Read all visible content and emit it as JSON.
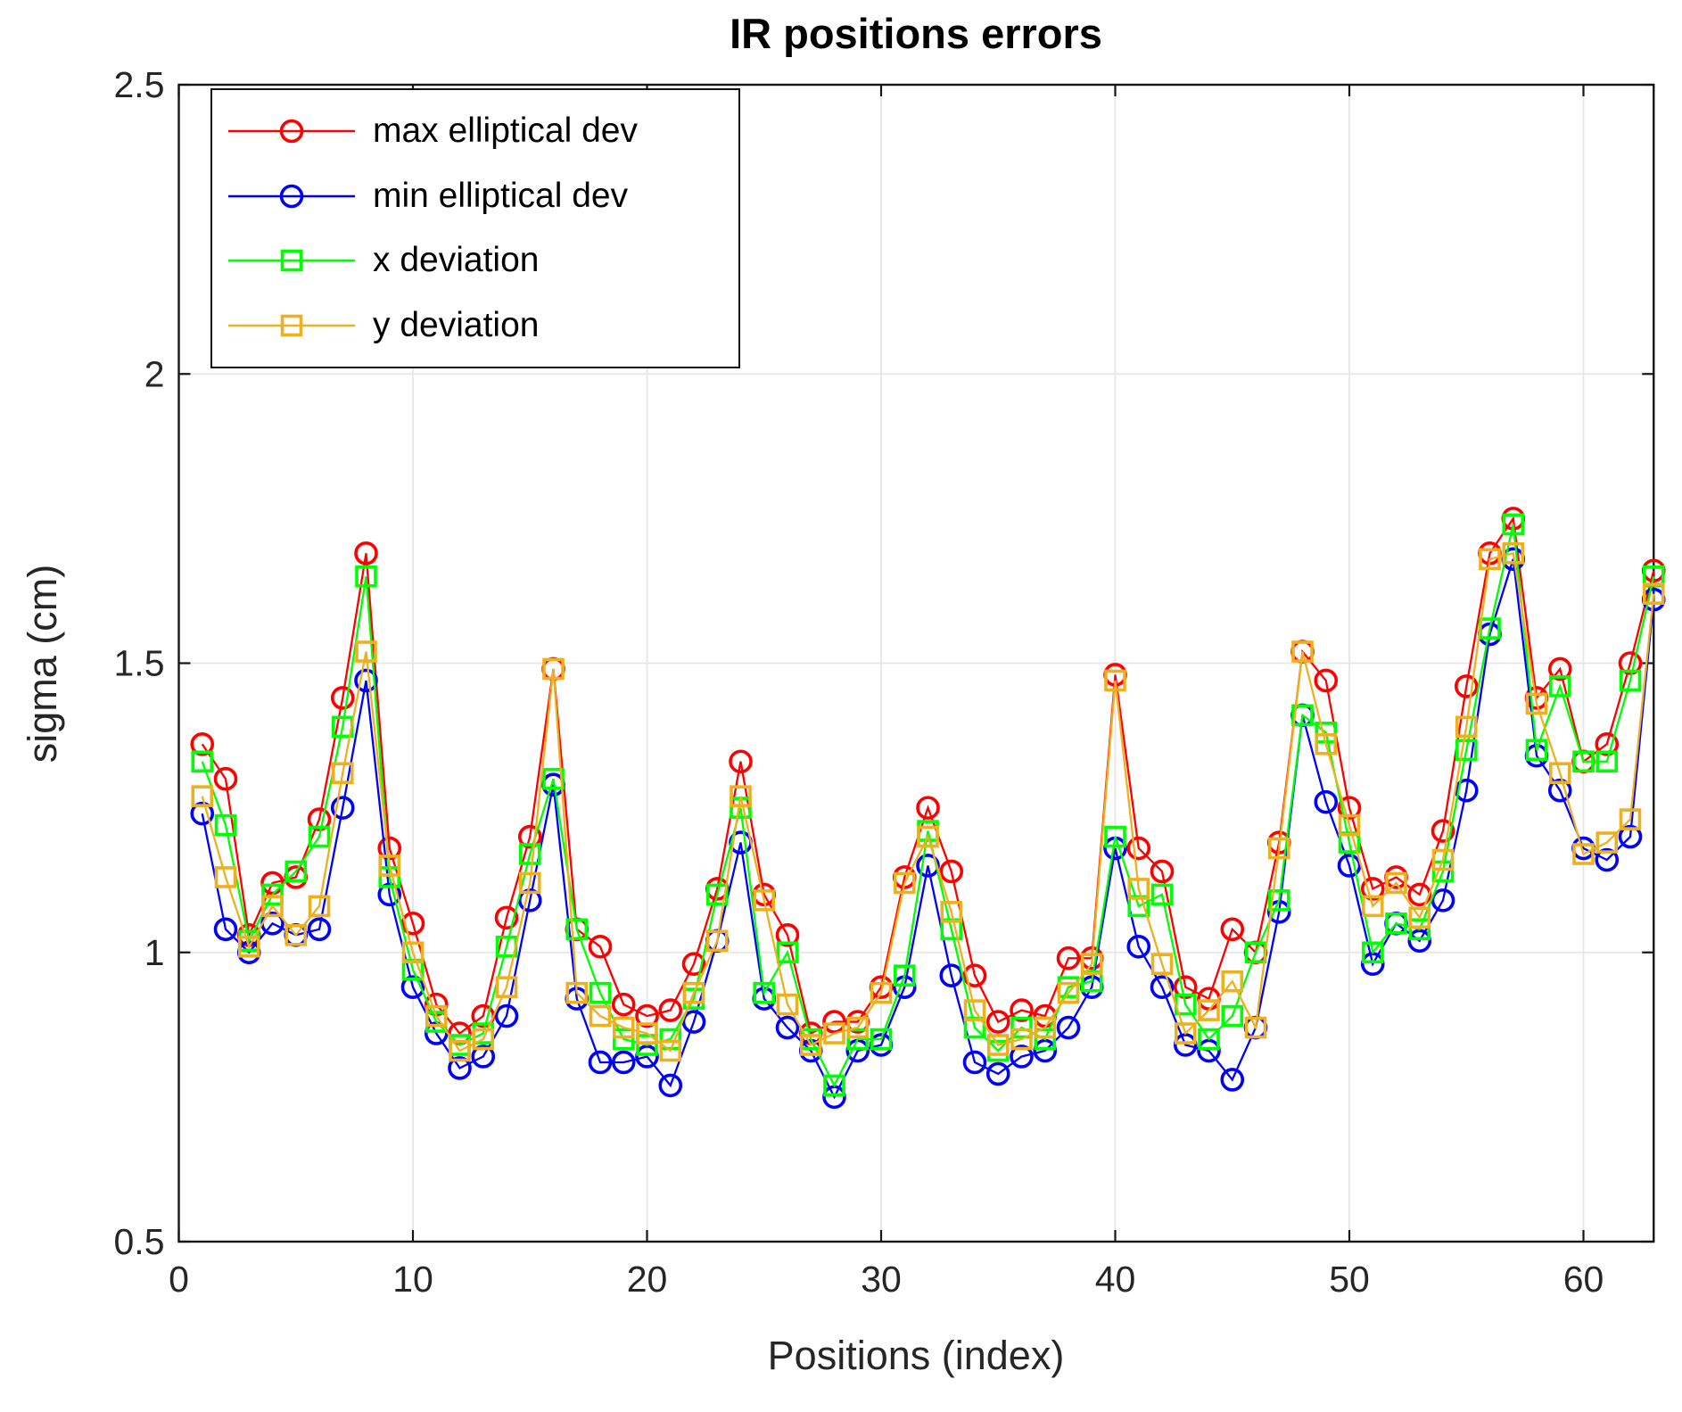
{
  "chart_data": {
    "type": "line",
    "title": "IR positions errors",
    "xlabel": "Positions (index)",
    "ylabel": "sigma (cm)",
    "xlim": [
      0,
      63
    ],
    "ylim": [
      0.5,
      2.5
    ],
    "x_ticks": [
      0,
      10,
      20,
      30,
      40,
      50,
      60
    ],
    "y_ticks": [
      0.5,
      1,
      1.5,
      2,
      2.5
    ],
    "y_tick_labels": [
      "0.5",
      "1",
      "1.5",
      "2",
      "2.5"
    ],
    "grid": true,
    "legend_position": "top-left",
    "axis_color": "#151515",
    "grid_color": "#e6e6e6",
    "tick_label_color": "#262626",
    "x": [
      1,
      2,
      3,
      4,
      5,
      6,
      7,
      8,
      9,
      10,
      11,
      12,
      13,
      14,
      15,
      16,
      17,
      18,
      19,
      20,
      21,
      22,
      23,
      24,
      25,
      26,
      27,
      28,
      29,
      30,
      31,
      32,
      33,
      34,
      35,
      36,
      37,
      38,
      39,
      40,
      41,
      42,
      43,
      44,
      45,
      46,
      47,
      48,
      49,
      50,
      51,
      52,
      53,
      54,
      55,
      56,
      57,
      58,
      59,
      60,
      61,
      62,
      63
    ],
    "series": [
      {
        "name": "max elliptical dev",
        "color": "#FF0000",
        "marker": "circle",
        "values": [
          1.36,
          1.3,
          1.03,
          1.12,
          1.13,
          1.23,
          1.44,
          1.69,
          1.18,
          1.05,
          0.91,
          0.86,
          0.89,
          1.06,
          1.2,
          1.49,
          1.04,
          1.01,
          0.91,
          0.89,
          0.9,
          0.98,
          1.11,
          1.33,
          1.1,
          1.03,
          0.86,
          0.88,
          0.88,
          0.94,
          1.13,
          1.25,
          1.14,
          0.96,
          0.88,
          0.9,
          0.89,
          0.99,
          0.99,
          1.48,
          1.18,
          1.14,
          0.94,
          0.92,
          1.04,
          1.0,
          1.19,
          1.52,
          1.47,
          1.25,
          1.11,
          1.13,
          1.1,
          1.21,
          1.46,
          1.69,
          1.75,
          1.44,
          1.49,
          1.33,
          1.36,
          1.5,
          1.66
        ]
      },
      {
        "name": "min elliptical dev",
        "color": "#0000FF",
        "marker": "circle",
        "values": [
          1.24,
          1.04,
          1.0,
          1.05,
          1.03,
          1.04,
          1.25,
          1.47,
          1.1,
          0.94,
          0.86,
          0.8,
          0.82,
          0.89,
          1.09,
          1.29,
          0.92,
          0.81,
          0.81,
          0.82,
          0.77,
          0.88,
          1.02,
          1.19,
          0.92,
          0.87,
          0.83,
          0.75,
          0.83,
          0.84,
          0.94,
          1.15,
          0.96,
          0.81,
          0.79,
          0.82,
          0.83,
          0.87,
          0.94,
          1.18,
          1.01,
          0.94,
          0.84,
          0.83,
          0.78,
          0.87,
          1.07,
          1.41,
          1.26,
          1.15,
          0.98,
          1.05,
          1.02,
          1.09,
          1.28,
          1.55,
          1.68,
          1.34,
          1.28,
          1.18,
          1.16,
          1.2,
          1.61
        ]
      },
      {
        "name": "x deviation",
        "color": "#00FF00",
        "marker": "square",
        "values": [
          1.33,
          1.22,
          1.02,
          1.1,
          1.14,
          1.2,
          1.39,
          1.65,
          1.13,
          0.97,
          0.88,
          0.84,
          0.86,
          1.01,
          1.17,
          1.3,
          1.04,
          0.93,
          0.85,
          0.84,
          0.85,
          0.92,
          1.1,
          1.25,
          0.93,
          1.0,
          0.85,
          0.77,
          0.85,
          0.85,
          0.96,
          1.21,
          1.04,
          0.87,
          0.83,
          0.87,
          0.85,
          0.94,
          0.95,
          1.2,
          1.08,
          1.1,
          0.91,
          0.85,
          0.89,
          1.0,
          1.09,
          1.41,
          1.38,
          1.19,
          1.0,
          1.05,
          1.04,
          1.14,
          1.35,
          1.56,
          1.74,
          1.35,
          1.46,
          1.33,
          1.33,
          1.47,
          1.65
        ]
      },
      {
        "name": "y deviation",
        "color": "#EDB120",
        "marker": "square",
        "values": [
          1.27,
          1.13,
          1.01,
          1.08,
          1.03,
          1.08,
          1.31,
          1.52,
          1.15,
          1.0,
          0.89,
          0.83,
          0.85,
          0.94,
          1.12,
          1.49,
          0.93,
          0.89,
          0.87,
          0.86,
          0.83,
          0.93,
          1.02,
          1.27,
          1.09,
          0.91,
          0.84,
          0.86,
          0.87,
          0.93,
          1.12,
          1.2,
          1.07,
          0.9,
          0.84,
          0.85,
          0.87,
          0.93,
          0.98,
          1.47,
          1.11,
          0.98,
          0.86,
          0.9,
          0.95,
          0.87,
          1.18,
          1.52,
          1.36,
          1.22,
          1.08,
          1.12,
          1.06,
          1.16,
          1.39,
          1.68,
          1.69,
          1.43,
          1.31,
          1.17,
          1.19,
          1.23,
          1.62
        ]
      }
    ]
  }
}
